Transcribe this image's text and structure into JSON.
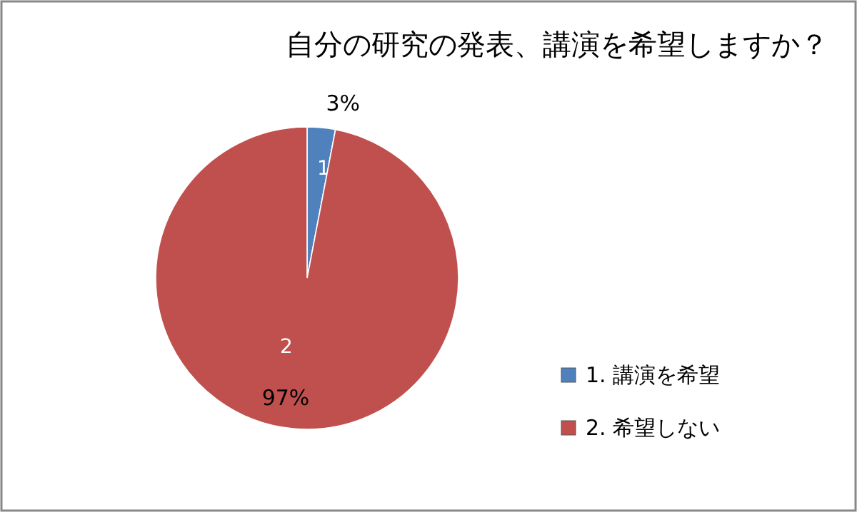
{
  "chart_data": {
    "type": "pie",
    "title": "自分の研究の発表、講演を希望しますか？",
    "categories": [
      "1. 講演を希望",
      "2. 希望しない"
    ],
    "values": [
      3,
      97
    ],
    "colors": [
      "#4f81bd",
      "#c0504d"
    ],
    "value_labels": [
      "3%",
      "97%"
    ],
    "annotations": [
      "1",
      "2"
    ],
    "legend": "right"
  }
}
